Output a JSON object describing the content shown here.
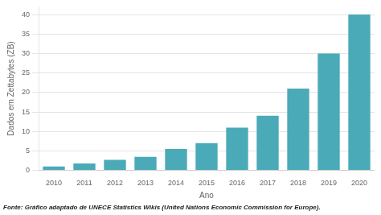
{
  "chart_data": {
    "type": "bar",
    "categories": [
      "2010",
      "2011",
      "2012",
      "2013",
      "2014",
      "2015",
      "2016",
      "2017",
      "2018",
      "2019",
      "2020"
    ],
    "values": [
      1.0,
      1.8,
      2.7,
      3.5,
      5.5,
      7.0,
      11.0,
      14.0,
      21.0,
      30.0,
      40.0
    ],
    "color": "#4aaab8",
    "xlabel": "Ano",
    "ylabel": "Dados em Zettabytes (ZB)",
    "ylim": [
      0,
      42
    ],
    "yticks": [
      0,
      5,
      10,
      15,
      20,
      25,
      30,
      35,
      40
    ],
    "grid": true,
    "caption": "Fonte: Gráfico adaptado de UNECE Statistics Wikis (United Nations Economic Commission for Europe)."
  }
}
